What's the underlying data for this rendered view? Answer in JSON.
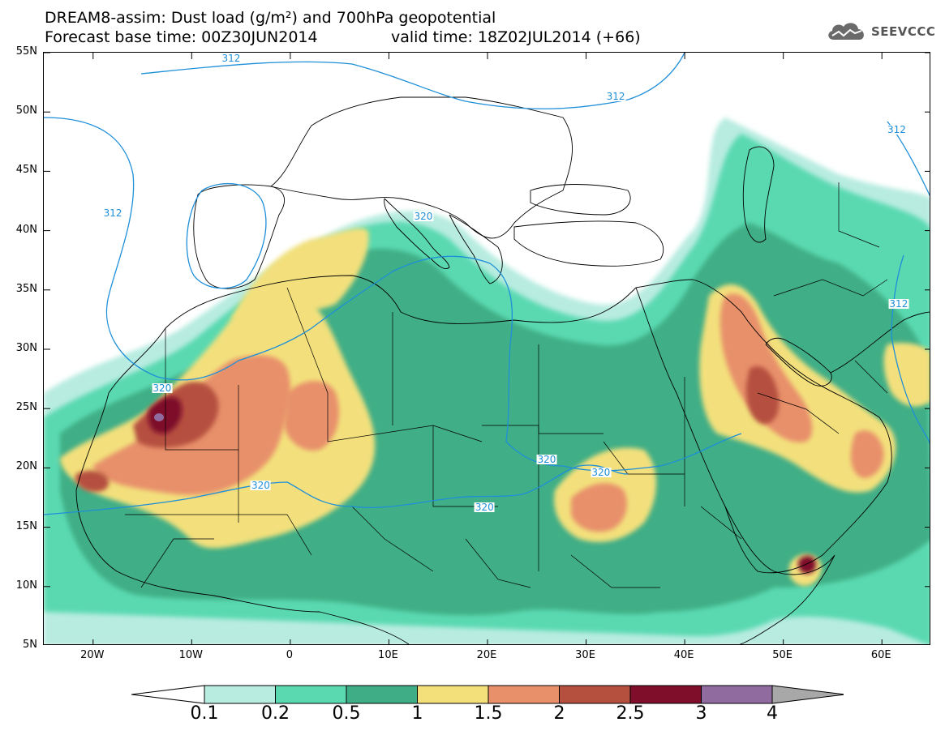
{
  "header": {
    "title_line1": "DREAM8-assim: Dust load (g/m²) and 700hPa geopotential",
    "title_line2": "Forecast base time: 00Z30JUN2014",
    "valid_time": "valid time: 18Z02JUL2014 (+66)",
    "logo_text": "SEEVCCC"
  },
  "map": {
    "lat_range": [
      5,
      55
    ],
    "lon_range": [
      -25,
      65
    ],
    "lat_ticks": [
      "55N",
      "50N",
      "45N",
      "40N",
      "35N",
      "30N",
      "25N",
      "20N",
      "15N",
      "10N",
      "5N"
    ],
    "lon_ticks": [
      "20W",
      "10W",
      "0",
      "10E",
      "20E",
      "30E",
      "40E",
      "50E",
      "60E"
    ],
    "contour_labels": [
      {
        "text": "312",
        "lon": -6,
        "lat": 54.5
      },
      {
        "text": "312",
        "lon": 33,
        "lat": 51.3
      },
      {
        "text": "312",
        "lon": -18,
        "lat": 41.5
      },
      {
        "text": "312",
        "lon": 61.5,
        "lat": 48.5
      },
      {
        "text": "312",
        "lon": 61.7,
        "lat": 33.8
      },
      {
        "text": "320",
        "lon": 13.5,
        "lat": 41.2
      },
      {
        "text": "320",
        "lon": -13,
        "lat": 26.7
      },
      {
        "text": "320",
        "lon": -3,
        "lat": 18.5
      },
      {
        "text": "320",
        "lon": 19.7,
        "lat": 16.7
      },
      {
        "text": "320",
        "lon": 26,
        "lat": 20.7
      },
      {
        "text": "320",
        "lon": 31.5,
        "lat": 19.6
      }
    ],
    "colors": {
      "coast": "#000000",
      "geopotential": "#1e8fd8"
    }
  },
  "colorbar": {
    "labels": [
      "0.1",
      "0.2",
      "0.5",
      "1",
      "1.5",
      "2",
      "2.5",
      "3",
      "4"
    ],
    "colors": [
      "#b8ece0",
      "#5ad9b0",
      "#3fae86",
      "#f3e07b",
      "#e8906a",
      "#b5503f",
      "#7e0e2a",
      "#8f6ba0"
    ],
    "under_color": "#ffffff",
    "over_color": "#a8a8a8"
  }
}
